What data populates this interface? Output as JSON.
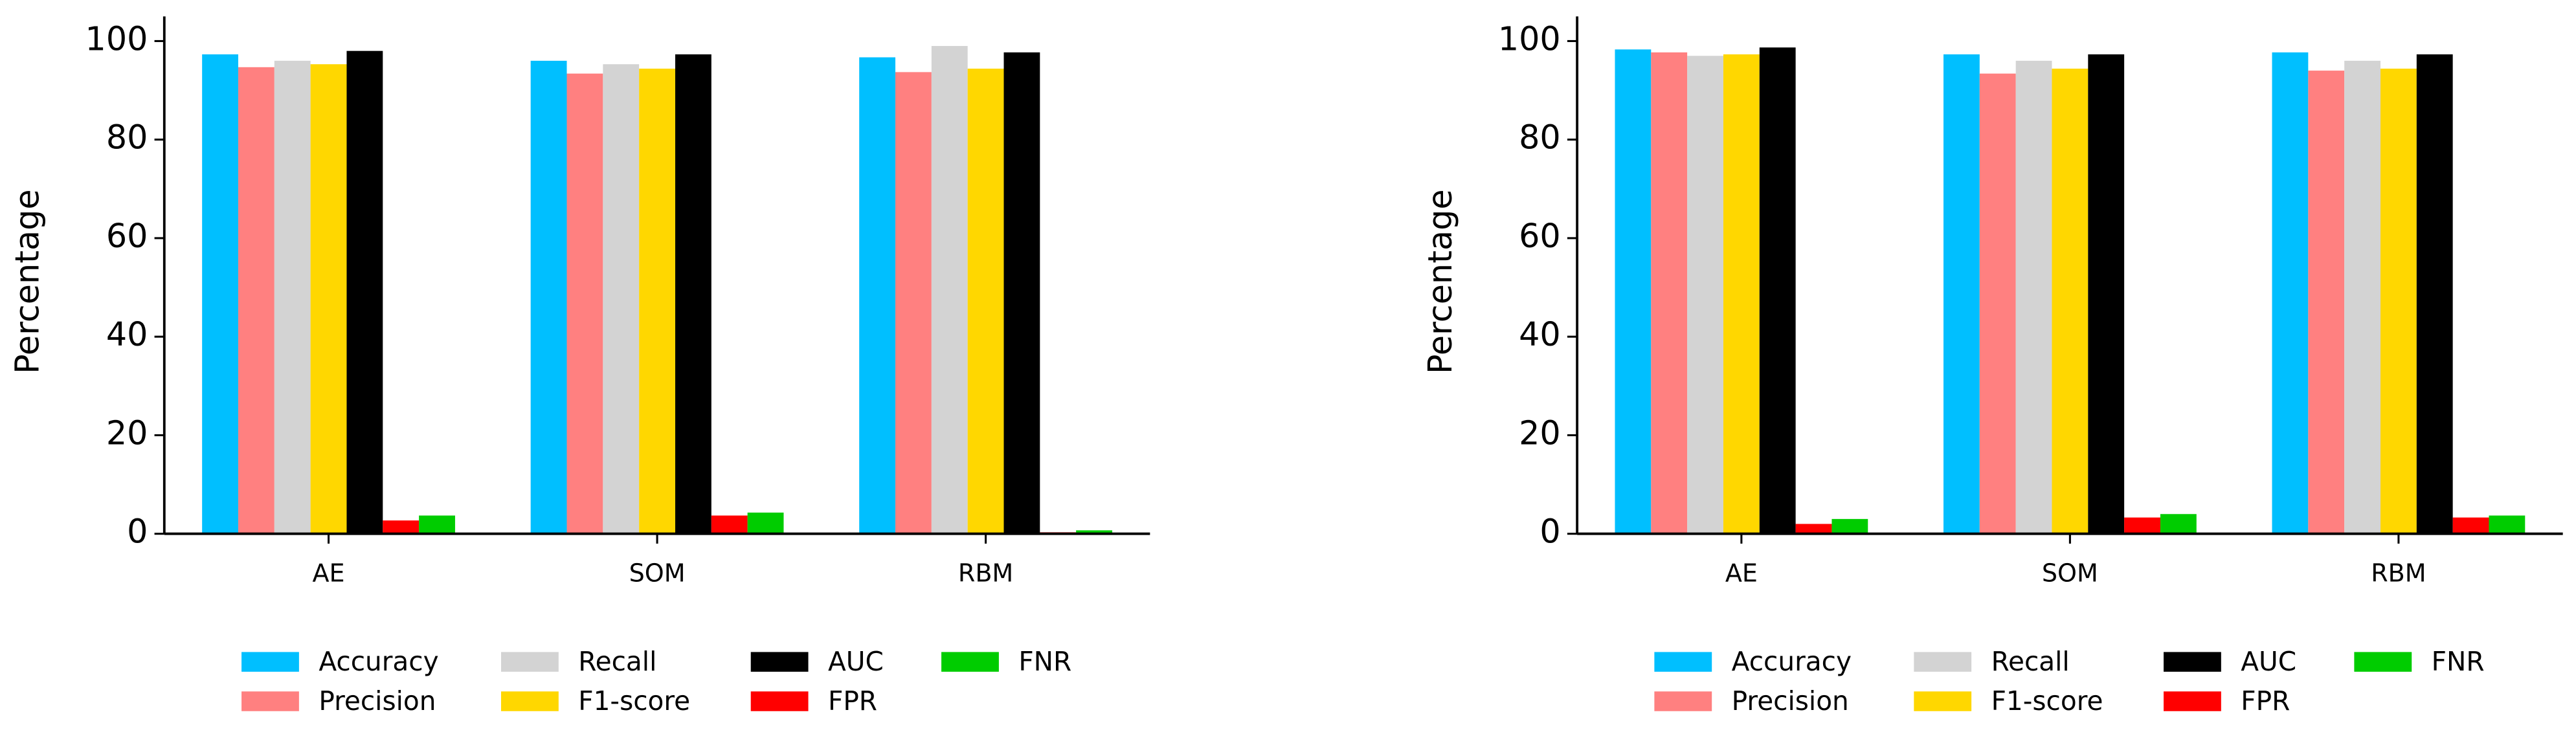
{
  "chart_data": [
    {
      "type": "bar",
      "ylabel": "Percentage",
      "categories": [
        "AE",
        "SOM",
        "RBM"
      ],
      "series": [
        {
          "name": "Accuracy",
          "color": "#00bfff",
          "values": [
            97.3,
            96,
            96.7
          ]
        },
        {
          "name": "Precision",
          "color": "#ff8080",
          "values": [
            94.7,
            93.4,
            93.7
          ]
        },
        {
          "name": "Recall",
          "color": "#d3d3d3",
          "values": [
            96,
            95.3,
            99
          ]
        },
        {
          "name": "F1-score",
          "color": "#ffd700",
          "values": [
            95.3,
            94.4,
            94.4
          ]
        },
        {
          "name": "AUC",
          "color": "#000000",
          "values": [
            98,
            97.3,
            97.7
          ]
        },
        {
          "name": "FPR",
          "color": "#ff0000",
          "values": [
            2.7,
            3.7,
            0.3
          ]
        },
        {
          "name": "FNR",
          "color": "#00cc00",
          "values": [
            3.7,
            4.3,
            0.7
          ]
        }
      ],
      "ylim": [
        0,
        105
      ],
      "yticks": [
        0,
        20,
        40,
        60,
        80,
        100
      ],
      "legend": "bottom"
    },
    {
      "type": "bar",
      "ylabel": "Percentage",
      "categories": [
        "AE",
        "SOM",
        "RBM"
      ],
      "series": [
        {
          "name": "Accuracy",
          "color": "#00bfff",
          "values": [
            98.3,
            97.3,
            97.7
          ]
        },
        {
          "name": "Precision",
          "color": "#ff8080",
          "values": [
            97.7,
            93.4,
            94
          ]
        },
        {
          "name": "Recall",
          "color": "#d3d3d3",
          "values": [
            97,
            96,
            96
          ]
        },
        {
          "name": "F1-score",
          "color": "#ffd700",
          "values": [
            97.3,
            94.4,
            94.4
          ]
        },
        {
          "name": "AUC",
          "color": "#000000",
          "values": [
            98.7,
            97.3,
            97.3
          ]
        },
        {
          "name": "FPR",
          "color": "#ff0000",
          "values": [
            2,
            3.3,
            3.3
          ]
        },
        {
          "name": "FNR",
          "color": "#00cc00",
          "values": [
            3,
            4,
            3.7
          ]
        }
      ],
      "ylim": [
        0,
        105
      ],
      "yticks": [
        0,
        20,
        40,
        60,
        80,
        100
      ],
      "legend": "bottom"
    }
  ]
}
